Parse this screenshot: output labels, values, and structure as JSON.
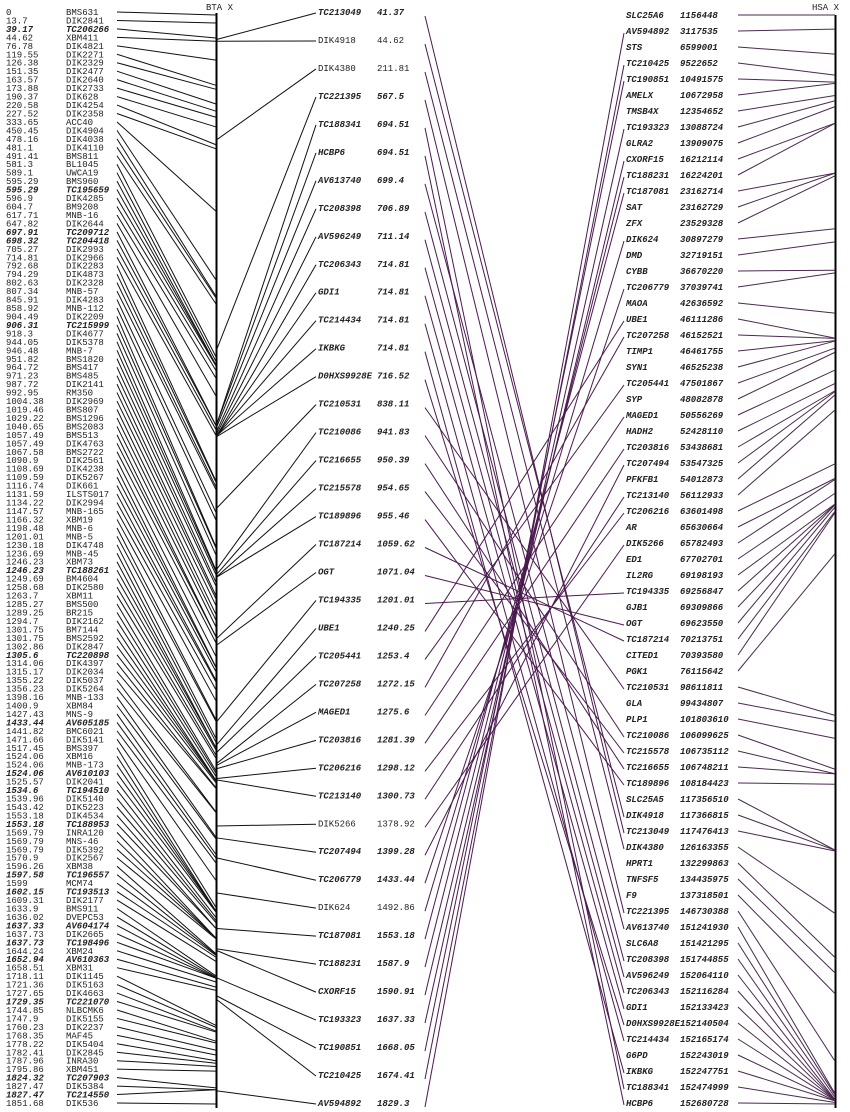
{
  "left_map": {
    "title": "BTA X",
    "max": 1851.68,
    "markers": [
      [
        "0",
        "BMS631"
      ],
      [
        "13.7",
        "DIK2841"
      ],
      [
        "39.17",
        "TC206266"
      ],
      [
        "44.62",
        "XBM411"
      ],
      [
        "76.78",
        "DIK4821"
      ],
      [
        "119.55",
        "DIK2271"
      ],
      [
        "126.38",
        "DIK2329"
      ],
      [
        "151.35",
        "DIK2477"
      ],
      [
        "163.57",
        "DIK2640"
      ],
      [
        "173.88",
        "DIK2733"
      ],
      [
        "190.37",
        "DIK628"
      ],
      [
        "220.58",
        "DIK4254"
      ],
      [
        "227.52",
        "DIK2358"
      ],
      [
        "333.65",
        "ACC40"
      ],
      [
        "450.45",
        "DIK4904"
      ],
      [
        "478.16",
        "DIK4038"
      ],
      [
        "481.1",
        "DIK4110"
      ],
      [
        "491.41",
        "BMS811"
      ],
      [
        "581.3",
        "BL1045"
      ],
      [
        "589.1",
        "UWCA19"
      ],
      [
        "595.29",
        "BMS960"
      ],
      [
        "595.29",
        "TC195659"
      ],
      [
        "596.9",
        "DIK4285"
      ],
      [
        "604.7",
        "BM9208"
      ],
      [
        "617.71",
        "MNB-16"
      ],
      [
        "647.82",
        "DIK2644"
      ],
      [
        "697.91",
        "TC209712"
      ],
      [
        "698.32",
        "TC204418"
      ],
      [
        "705.27",
        "DIK2993"
      ],
      [
        "714.81",
        "DIK2966"
      ],
      [
        "792.68",
        "DIK2283"
      ],
      [
        "794.29",
        "DIK4873"
      ],
      [
        "802.63",
        "DIK2328"
      ],
      [
        "807.34",
        "MNB-57"
      ],
      [
        "845.91",
        "DIK4283"
      ],
      [
        "858.92",
        "MNB-112"
      ],
      [
        "904.49",
        "DIK2209"
      ],
      [
        "906.31",
        "TC215999"
      ],
      [
        "918.3",
        "DIK4677"
      ],
      [
        "944.05",
        "DIK5378"
      ],
      [
        "946.48",
        "MNB-7"
      ],
      [
        "951.82",
        "BMS1820"
      ],
      [
        "964.72",
        "BMS417"
      ],
      [
        "971.23",
        "BMS485"
      ],
      [
        "987.72",
        "DIK2141"
      ],
      [
        "992.95",
        "RM350"
      ],
      [
        "1004.38",
        "DIK2969"
      ],
      [
        "1019.46",
        "BMS807"
      ],
      [
        "1029.22",
        "BMS1296"
      ],
      [
        "1040.65",
        "BMS2083"
      ],
      [
        "1057.49",
        "BMS513"
      ],
      [
        "1057.49",
        "DIK4763"
      ],
      [
        "1067.58",
        "BMS2722"
      ],
      [
        "1090.9",
        "DIK2561"
      ],
      [
        "1108.69",
        "DIK4238"
      ],
      [
        "1109.59",
        "DIK5267"
      ],
      [
        "1116.74",
        "DIK661"
      ],
      [
        "1131.59",
        "ILSTS017"
      ],
      [
        "1134.22",
        "DIK2994"
      ],
      [
        "1147.57",
        "MNB-165"
      ],
      [
        "1166.32",
        "XBM19"
      ],
      [
        "1198.48",
        "MNB-6"
      ],
      [
        "1201.01",
        "MNB-5"
      ],
      [
        "1230.18",
        "DIK4748"
      ],
      [
        "1236.69",
        "MNB-45"
      ],
      [
        "1246.23",
        "XBM73"
      ],
      [
        "1246.23",
        "TC188261"
      ],
      [
        "1249.69",
        "BM4604"
      ],
      [
        "1258.68",
        "DIK2580"
      ],
      [
        "1263.7",
        "XBM11"
      ],
      [
        "1285.27",
        "BMS500"
      ],
      [
        "1289.25",
        "BR215"
      ],
      [
        "1294.7",
        "DIK2162"
      ],
      [
        "1301.75",
        "BM7144"
      ],
      [
        "1301.75",
        "BMS2592"
      ],
      [
        "1302.86",
        "DIK2847"
      ],
      [
        "1305.6",
        "TC220898"
      ],
      [
        "1314.06",
        "DIK4397"
      ],
      [
        "1315.17",
        "DIK2034"
      ],
      [
        "1355.22",
        "DIK5037"
      ],
      [
        "1356.23",
        "DIK5264"
      ],
      [
        "1398.16",
        "MNB-133"
      ],
      [
        "1400.9",
        "XBM84"
      ],
      [
        "1427.43",
        "MNS-9"
      ],
      [
        "1433.44",
        "AV605185"
      ],
      [
        "1441.82",
        "BMC6021"
      ],
      [
        "1471.66",
        "DIK5141"
      ],
      [
        "1517.45",
        "BMS397"
      ],
      [
        "1524.06",
        "XBM16"
      ],
      [
        "1524.06",
        "MNB-173"
      ],
      [
        "1524.06",
        "AV610103"
      ],
      [
        "1525.57",
        "DIK2041"
      ],
      [
        "1534.6",
        "TC194510"
      ],
      [
        "1539.96",
        "DIK5140"
      ],
      [
        "1543.42",
        "DIK5223"
      ],
      [
        "1553.18",
        "DIK4534"
      ],
      [
        "1553.18",
        "TC188953"
      ],
      [
        "1569.79",
        "INRA120"
      ],
      [
        "1569.79",
        "MNS-46"
      ],
      [
        "1569.79",
        "DIK5392"
      ],
      [
        "1570.9",
        "DIK2567"
      ],
      [
        "1596.26",
        "XBM38"
      ],
      [
        "1597.58",
        "TC196557"
      ],
      [
        "1599",
        "MCM74"
      ],
      [
        "1602.15",
        "TC193513"
      ],
      [
        "1609.31",
        "DIK2177"
      ],
      [
        "1633.9",
        "BMS911"
      ],
      [
        "1636.02",
        "DVEPC53"
      ],
      [
        "1637.33",
        "AV604174"
      ],
      [
        "1637.73",
        "DIK2665"
      ],
      [
        "1637.73",
        "TC198496"
      ],
      [
        "1644.24",
        "XBM24"
      ],
      [
        "1652.94",
        "AV610363"
      ],
      [
        "1658.51",
        "XBM31"
      ],
      [
        "1718.11",
        "DIK1145"
      ],
      [
        "1721.36",
        "DIK5163"
      ],
      [
        "1727.65",
        "DIK4663"
      ],
      [
        "1729.35",
        "TC221070"
      ],
      [
        "1744.85",
        "NLBCMK6"
      ],
      [
        "1747.9",
        "DIK5155"
      ],
      [
        "1760.23",
        "DIK2237"
      ],
      [
        "1768.35",
        "MAF45"
      ],
      [
        "1778.22",
        "DIK5404"
      ],
      [
        "1782.41",
        "DIK2845"
      ],
      [
        "1787.96",
        "INRA30"
      ],
      [
        "1795.86",
        "XBM451"
      ],
      [
        "1824.32",
        "TC207903"
      ],
      [
        "1827.47",
        "DIK5384"
      ],
      [
        "1827.47",
        "TC214550"
      ],
      [
        "1851.68",
        "DIK536"
      ]
    ]
  },
  "middle_list": [
    [
      "TC213049",
      "41.37"
    ],
    [
      "DIK4918",
      "44.62"
    ],
    [
      "DIK4380",
      "211.81"
    ],
    [
      "TC221395",
      "567.5"
    ],
    [
      "TC188341",
      "694.51"
    ],
    [
      "HCBP6",
      "694.51"
    ],
    [
      "AV613740",
      "699.4"
    ],
    [
      "TC208398",
      "706.89"
    ],
    [
      "AV596249",
      "711.14"
    ],
    [
      "TC206343",
      "714.81"
    ],
    [
      "GDI1",
      "714.81"
    ],
    [
      "TC214434",
      "714.81"
    ],
    [
      "IKBKG",
      "714.81"
    ],
    [
      "D0HXS9928E",
      "716.52"
    ],
    [
      "TC210531",
      "838.11"
    ],
    [
      "TC210086",
      "941.83"
    ],
    [
      "TC216655",
      "950.39"
    ],
    [
      "TC215578",
      "954.65"
    ],
    [
      "TC189896",
      "955.46"
    ],
    [
      "TC187214",
      "1059.62"
    ],
    [
      "OGT",
      "1071.04"
    ],
    [
      "TC194335",
      "1201.01"
    ],
    [
      "UBE1",
      "1240.25"
    ],
    [
      "TC205441",
      "1253.4"
    ],
    [
      "TC207258",
      "1272.15"
    ],
    [
      "MAGED1",
      "1275.6"
    ],
    [
      "TC203816",
      "1281.39"
    ],
    [
      "TC206216",
      "1298.12"
    ],
    [
      "TC213140",
      "1300.73"
    ],
    [
      "DIK5266",
      "1378.92"
    ],
    [
      "TC207494",
      "1399.28"
    ],
    [
      "TC206779",
      "1433.44"
    ],
    [
      "DIK624",
      "1492.86"
    ],
    [
      "TC187081",
      "1553.18"
    ],
    [
      "TC188231",
      "1587.9"
    ],
    [
      "CXORF15",
      "1590.91"
    ],
    [
      "TC193323",
      "1637.33"
    ],
    [
      "TC190851",
      "1668.05"
    ],
    [
      "TC210425",
      "1674.41"
    ],
    [
      "AV594892",
      "1829.3"
    ]
  ],
  "right_map": {
    "title": "HSA X",
    "min": 1156448,
    "max": 152680728,
    "markers": [
      [
        "SLC25A6",
        "1156448"
      ],
      [
        "AV594892",
        "3117535"
      ],
      [
        "STS",
        "6599001"
      ],
      [
        "TC210425",
        "9522652"
      ],
      [
        "TC190851",
        "10491575"
      ],
      [
        "AMELX",
        "10672958"
      ],
      [
        "TMSB4X",
        "12354652"
      ],
      [
        "TC193323",
        "13088724"
      ],
      [
        "GLRA2",
        "13909075"
      ],
      [
        "CXORF15",
        "16212114"
      ],
      [
        "TC188231",
        "16224201"
      ],
      [
        "TC187081",
        "23162714"
      ],
      [
        "SAT",
        "23162729"
      ],
      [
        "ZFX",
        "23529328"
      ],
      [
        "DIK624",
        "30897279"
      ],
      [
        "DMD",
        "32719151"
      ],
      [
        "CYBB",
        "36670220"
      ],
      [
        "TC206779",
        "37039741"
      ],
      [
        "MAOA",
        "42636592"
      ],
      [
        "UBE1",
        "46111286"
      ],
      [
        "TC207258",
        "46152521"
      ],
      [
        "TIMP1",
        "46461755"
      ],
      [
        "SYN1",
        "46525238"
      ],
      [
        "TC205441",
        "47501867"
      ],
      [
        "SYP",
        "48082878"
      ],
      [
        "MAGED1",
        "50556269"
      ],
      [
        "HADH2",
        "52428110"
      ],
      [
        "TC203816",
        "53438681"
      ],
      [
        "TC207494",
        "53547325"
      ],
      [
        "PFKFB1",
        "54012873"
      ],
      [
        "TC213140",
        "56112933"
      ],
      [
        "TC206216",
        "63601498"
      ],
      [
        "AR",
        "65630664"
      ],
      [
        "DIK5266",
        "65782493"
      ],
      [
        "ED1",
        "67702701"
      ],
      [
        "IL2RG",
        "69198193"
      ],
      [
        "TC194335",
        "69256847"
      ],
      [
        "GJB1",
        "69309866"
      ],
      [
        "OGT",
        "69623550"
      ],
      [
        "TC187214",
        "70213751"
      ],
      [
        "CITED1",
        "70393580"
      ],
      [
        "PGK1",
        "76115642"
      ],
      [
        "TC210531",
        "98611811"
      ],
      [
        "GLA",
        "99434807"
      ],
      [
        "PLP1",
        "101803610"
      ],
      [
        "TC210086",
        "106099625"
      ],
      [
        "TC215578",
        "106735112"
      ],
      [
        "TC216655",
        "106748211"
      ],
      [
        "TC189896",
        "108184423"
      ],
      [
        "SLC25A5",
        "117356510"
      ],
      [
        "DIK4918",
        "117366815"
      ],
      [
        "TC213049",
        "117476413"
      ],
      [
        "DIK4380",
        "126163355"
      ],
      [
        "HPRT1",
        "132299863"
      ],
      [
        "TNFSF5",
        "134435975"
      ],
      [
        "F9",
        "137318501"
      ],
      [
        "TC221395",
        "146730388"
      ],
      [
        "AV613740",
        "151241930"
      ],
      [
        "SLC6A8",
        "151421295"
      ],
      [
        "TC208398",
        "151744855"
      ],
      [
        "AV596249",
        "152064110"
      ],
      [
        "TC206343",
        "152116284"
      ],
      [
        "GDI1",
        "152133423"
      ],
      [
        "D0HXS9928E",
        "152140504"
      ],
      [
        "TC214434",
        "152165174"
      ],
      [
        "G6PD",
        "152243019"
      ],
      [
        "IKBKG",
        "152247751"
      ],
      [
        "TC188341",
        "152474999"
      ],
      [
        "HCBP6",
        "152680728"
      ]
    ]
  },
  "colors": {
    "axis": "#000000",
    "bta_links": "#111111",
    "comparative_links": "#4a1a4e",
    "hsa_links": "#4a2a4e"
  }
}
